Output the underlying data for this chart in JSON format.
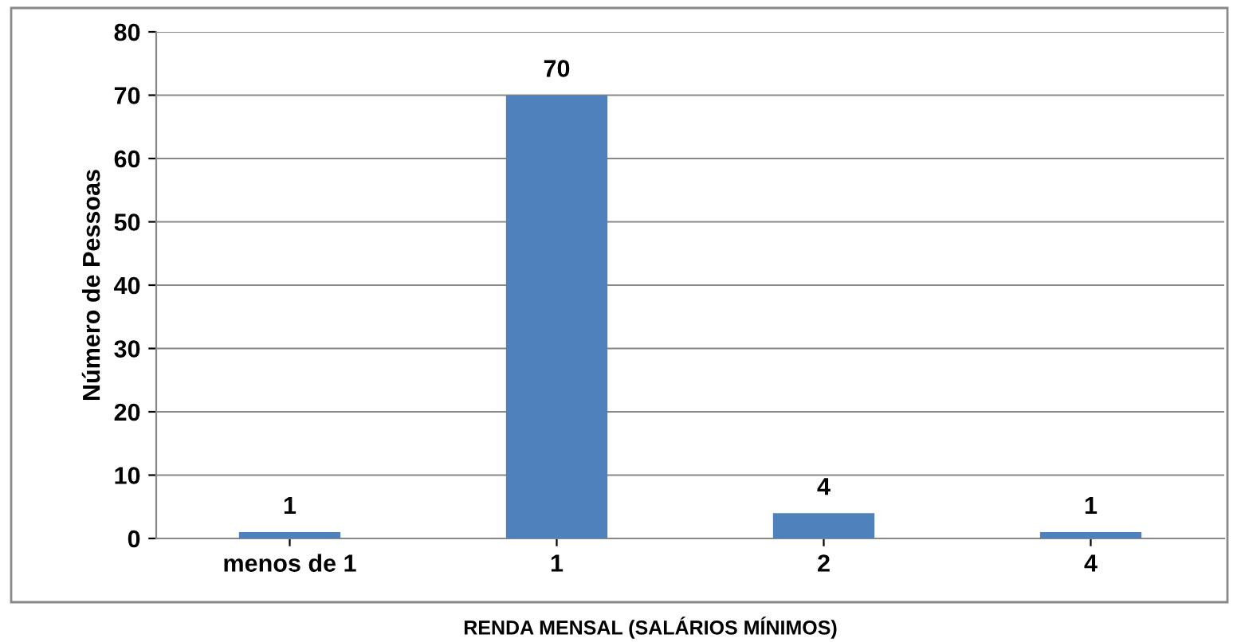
{
  "chart_data": {
    "type": "bar",
    "xlabel": "RENDA MENSAL (SALÁRIOS MÍNIMOS)",
    "ylabel": "Número de Pessoas",
    "categories": [
      "menos de 1",
      "1",
      "2",
      "4"
    ],
    "values": [
      1,
      70,
      4,
      1
    ],
    "color": "#4f81bd",
    "ylim": [
      0,
      80
    ],
    "yticks": [
      0,
      10,
      20,
      30,
      40,
      50,
      60,
      70,
      80
    ],
    "grid": "y",
    "data_labels": true
  }
}
